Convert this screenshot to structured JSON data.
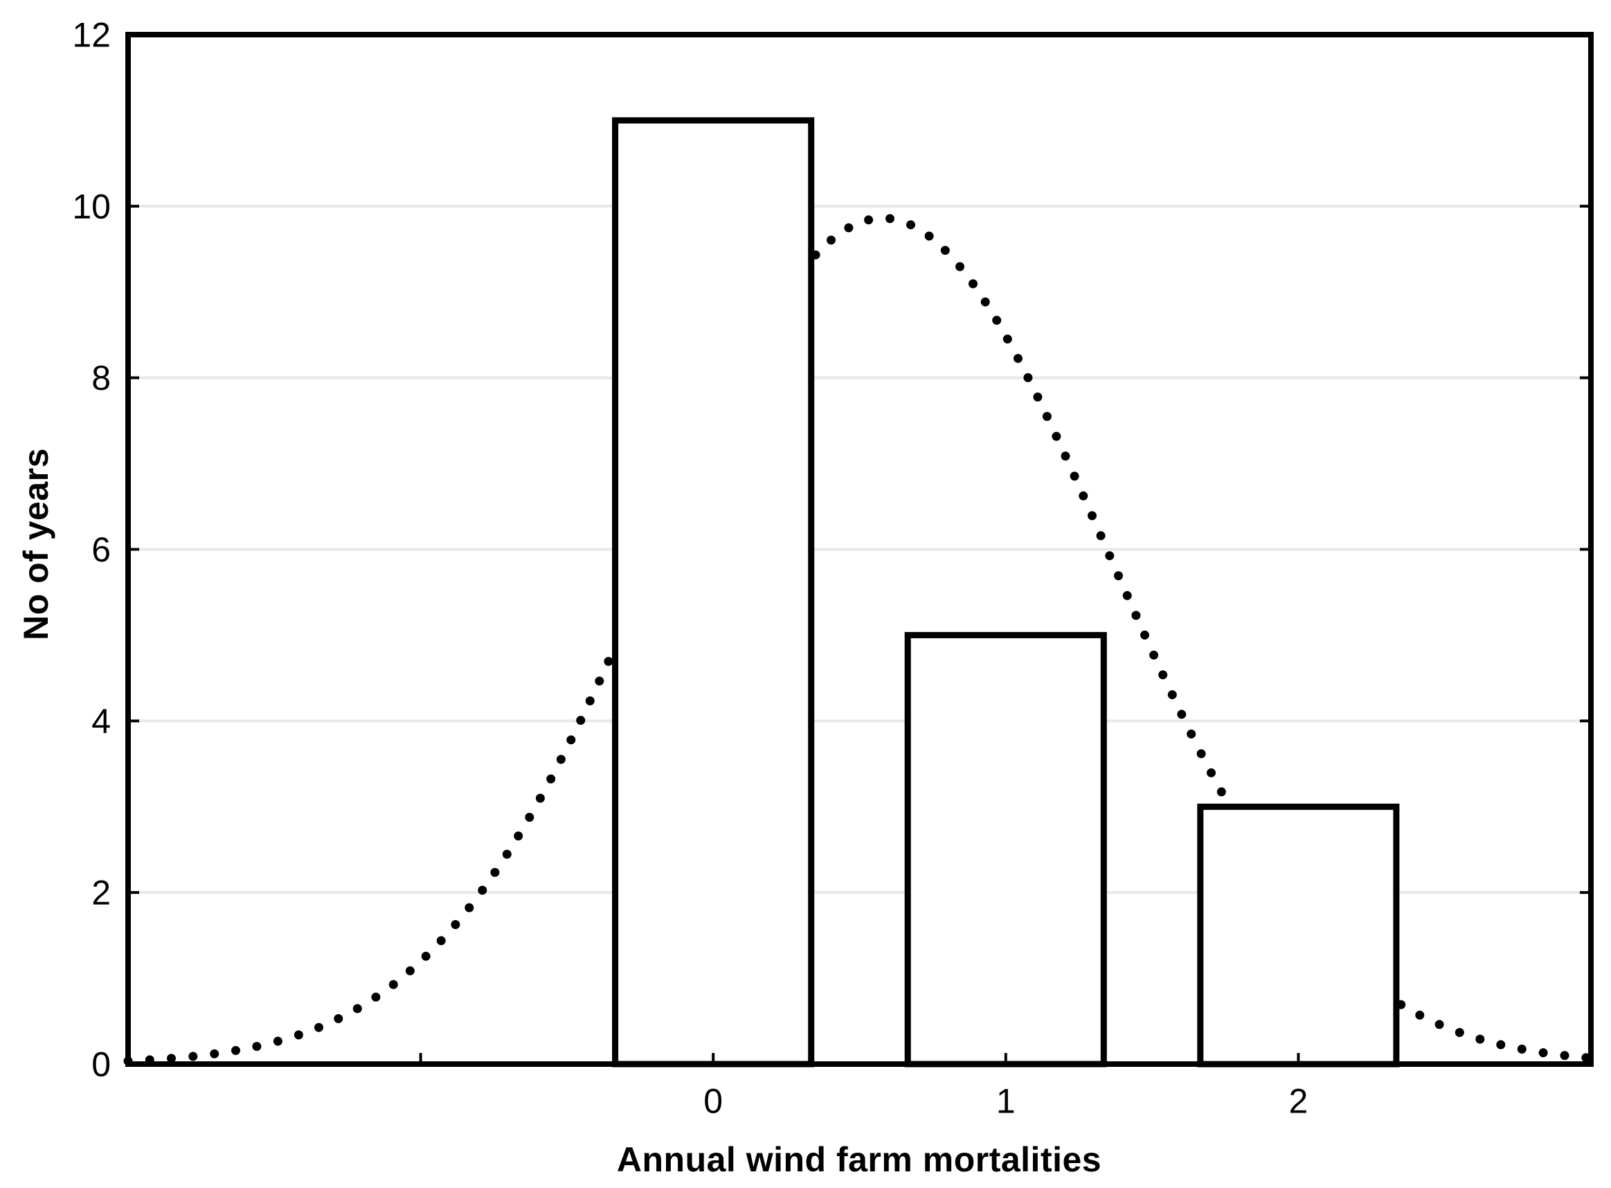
{
  "chart_data": {
    "type": "bar",
    "title": "",
    "xlabel": "Annual wind farm mortalities",
    "ylabel": "No of years",
    "categories": [
      0,
      1,
      2
    ],
    "values": [
      11,
      5,
      3
    ],
    "bar_width": 0.67,
    "xlim": [
      -2,
      3
    ],
    "ylim": [
      0,
      12
    ],
    "y_ticks": [
      0,
      2,
      4,
      6,
      8,
      10,
      12
    ],
    "x_major_ticks": [
      0,
      1,
      2
    ],
    "x_minor_ticks": [
      -1
    ],
    "grid_y": [
      2,
      4,
      6,
      8,
      10
    ],
    "grid_on": true,
    "legend": "none",
    "curve": {
      "type": "normal_fit_dotted",
      "mean": 0.579,
      "sd": 0.769,
      "peak": 9.86,
      "x_range": [
        -2,
        3
      ]
    },
    "colors": {
      "background": "#ffffff",
      "bar_fill": "#ffffff",
      "bar_stroke": "#000000",
      "curve": "#000000",
      "grid": "#e8e8e8",
      "frame": "#000000",
      "text": "#000000"
    }
  }
}
